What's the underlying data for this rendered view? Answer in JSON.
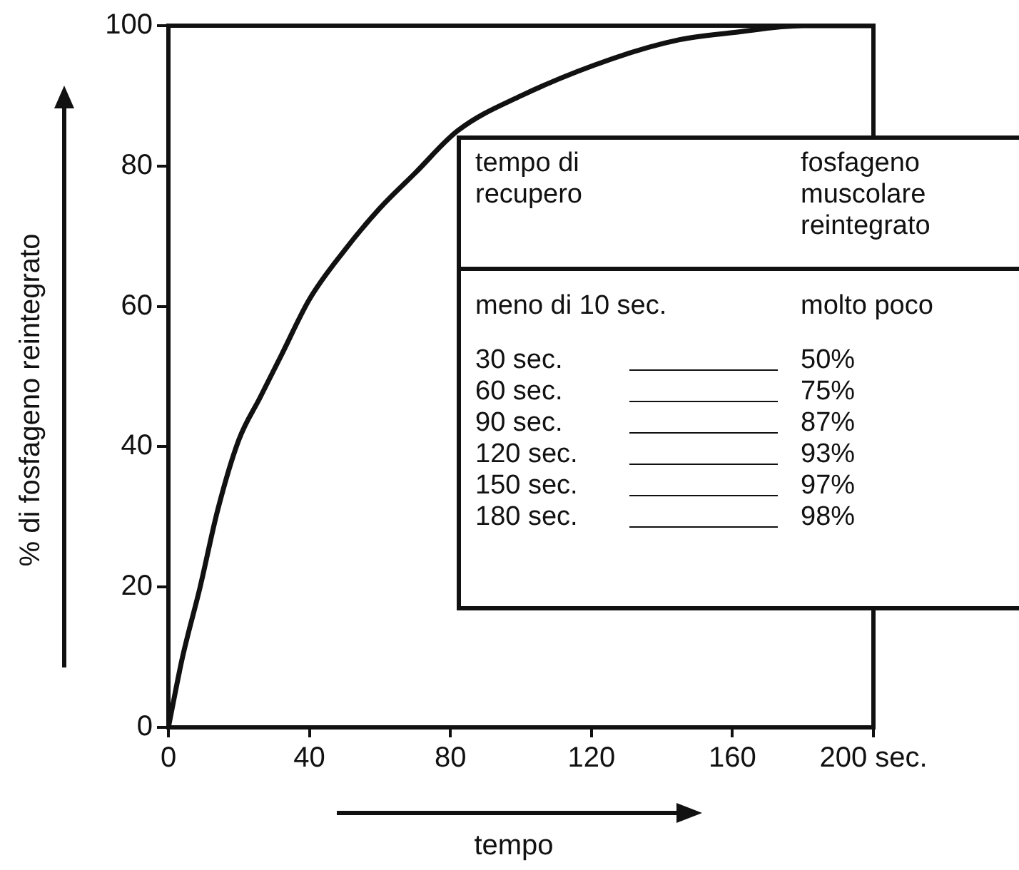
{
  "chart_data": {
    "type": "line",
    "xlabel": "tempo",
    "ylabel": "% di fosfageno reintegrato",
    "series": [
      {
        "color": "#111111",
        "x": [
          0,
          4,
          9,
          14,
          20,
          26,
          32,
          40,
          50,
          60,
          70,
          82,
          100,
          126,
          145,
          160,
          180,
          200
        ],
        "values": [
          0,
          10,
          20,
          31,
          41,
          47,
          53,
          61,
          68,
          74,
          79,
          85,
          90,
          95.3,
          98,
          99,
          100,
          100
        ]
      }
    ],
    "xlim": [
      0,
      200
    ],
    "ylim": [
      0,
      100
    ],
    "xticks": [
      0,
      40,
      80,
      120,
      160,
      {
        "value": 200,
        "label": "200 sec."
      }
    ],
    "yticks": [
      0,
      20,
      40,
      60,
      80,
      100
    ],
    "grid": false,
    "legend": false,
    "marker": "none",
    "line_style": "solid",
    "annotations": [
      "tempo di recupero",
      "fosfageno muscolare reintegrato",
      "meno di 10 sec.",
      "molto poco",
      "30 sec.",
      "50%",
      "60 sec.",
      "75%",
      "90 sec.",
      "87%",
      "120 sec.",
      "93%",
      "150 sec.",
      "97%",
      "180 sec.",
      "98%"
    ]
  }
}
